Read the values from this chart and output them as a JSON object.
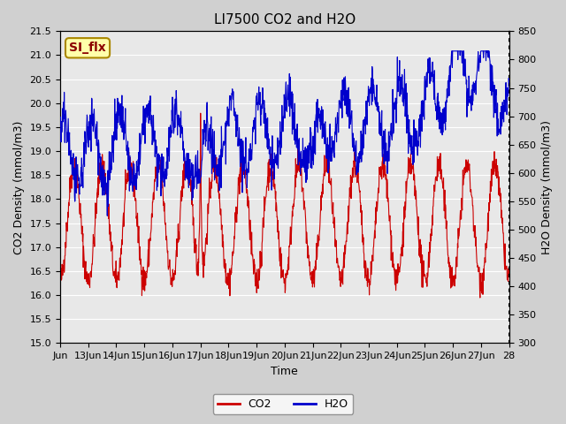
{
  "title": "LI7500 CO2 and H2O",
  "xlabel": "Time",
  "ylabel_left": "CO2 Density (mmol/m3)",
  "ylabel_right": "H2O Density (mmol/m3)",
  "ylim_left": [
    15.0,
    21.5
  ],
  "ylim_right": [
    300,
    850
  ],
  "yticks_left": [
    15.0,
    15.5,
    16.0,
    16.5,
    17.0,
    17.5,
    18.0,
    18.5,
    19.0,
    19.5,
    20.0,
    20.5,
    21.0,
    21.5
  ],
  "yticks_right": [
    300,
    350,
    400,
    450,
    500,
    550,
    600,
    650,
    700,
    750,
    800,
    850
  ],
  "xtick_positions": [
    0,
    1,
    2,
    3,
    4,
    5,
    6,
    7,
    8,
    9,
    10,
    11,
    12,
    13,
    14,
    15,
    16
  ],
  "xtick_labels": [
    "Jun",
    "13Jun",
    "14Jun",
    "15Jun",
    "16Jun",
    "17Jun",
    "18Jun",
    "19Jun",
    "20Jun",
    "21Jun",
    "22Jun",
    "23Jun",
    "24Jun",
    "25Jun",
    "26Jun",
    "27Jun",
    "28"
  ],
  "background_color": "#d0d0d0",
  "plot_bg_color": "#e8e8e8",
  "co2_color": "#cc0000",
  "h2o_color": "#0000cc",
  "annotation_text": "SI_flx",
  "annotation_bg": "#ffffaa",
  "annotation_border": "#aa8800",
  "n_points": 1440,
  "legend_co2": "CO2",
  "legend_h2o": "H2O"
}
